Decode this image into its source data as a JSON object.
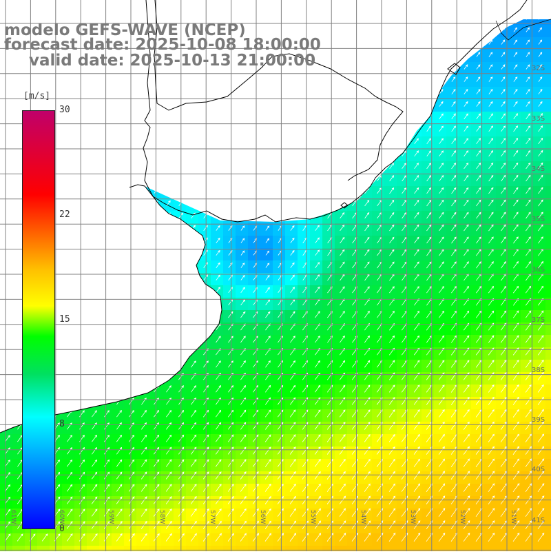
{
  "title": {
    "model": "modelo GEFS-WAVE (NCEP)",
    "forecast": "forecast date: 2025-10-08 18:00:00",
    "valid": "valid date: 2025-10-13 21:00:00"
  },
  "colorbar": {
    "unit": "[m/s]",
    "min": 0,
    "max": 30,
    "ticks": [
      "30",
      "22",
      "15",
      "8",
      "0"
    ],
    "colors": [
      "#0000ff",
      "#00c0ff",
      "#00ffff",
      "#00e060",
      "#00ff00",
      "#ffff00",
      "#ffc000",
      "#ff6000",
      "#ff0000",
      "#c0006a"
    ]
  },
  "lat_labels": [
    "32S",
    "33S",
    "34S",
    "35S",
    "36S",
    "37S",
    "38S",
    "39S",
    "40S",
    "41S"
  ],
  "lon_labels": [
    "61W",
    "60W",
    "59W",
    "58W",
    "57W",
    "56W",
    "55W",
    "54W",
    "53W",
    "52W",
    "51W"
  ],
  "map_data": {
    "variable": "wind speed",
    "units": "m/s",
    "lat_range": [
      -41.3,
      -30.7
    ],
    "lon_range": [
      -61.3,
      -50.5
    ],
    "grid_color": "#808080",
    "coast_color": "#000000"
  }
}
